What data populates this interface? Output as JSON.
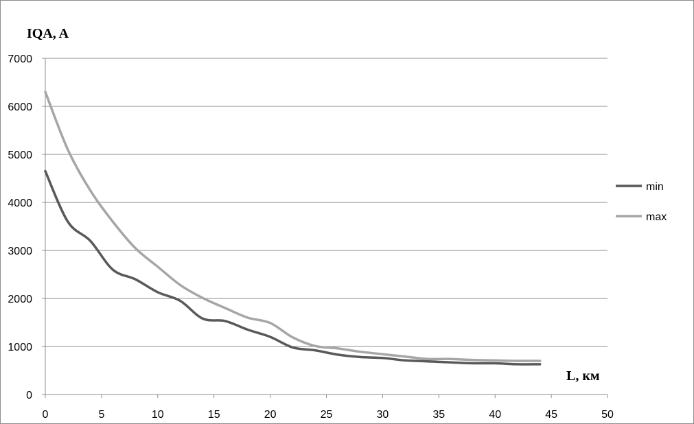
{
  "chart_data": {
    "type": "line",
    "title": "",
    "xlabel": "L, км",
    "ylabel": "IQA, A",
    "xlim": [
      0,
      50
    ],
    "ylim": [
      0,
      7000
    ],
    "x_ticks": [
      0,
      5,
      10,
      15,
      20,
      25,
      30,
      35,
      40,
      45,
      50
    ],
    "y_ticks": [
      0,
      1000,
      2000,
      3000,
      4000,
      5000,
      6000,
      7000
    ],
    "grid": "horizontal",
    "legend_position": "right",
    "series": [
      {
        "name": "min",
        "color": "#595959",
        "x": [
          0,
          2,
          4,
          6,
          8,
          10,
          12,
          14,
          16,
          18,
          20,
          22,
          24,
          26,
          28,
          30,
          32,
          34,
          36,
          38,
          40,
          42,
          44
        ],
        "y": [
          4650,
          3600,
          3200,
          2600,
          2400,
          2130,
          1950,
          1580,
          1530,
          1350,
          1200,
          980,
          920,
          830,
          780,
          760,
          710,
          690,
          670,
          650,
          650,
          630,
          630
        ]
      },
      {
        "name": "max",
        "color": "#a6a6a6",
        "x": [
          0,
          2,
          4,
          6,
          8,
          10,
          12,
          14,
          16,
          18,
          20,
          22,
          24,
          26,
          28,
          30,
          32,
          34,
          36,
          38,
          40,
          42,
          44
        ],
        "y": [
          6300,
          5100,
          4250,
          3600,
          3050,
          2660,
          2280,
          2010,
          1800,
          1600,
          1490,
          1190,
          1010,
          960,
          890,
          840,
          790,
          740,
          740,
          720,
          710,
          700,
          700
        ]
      }
    ]
  }
}
